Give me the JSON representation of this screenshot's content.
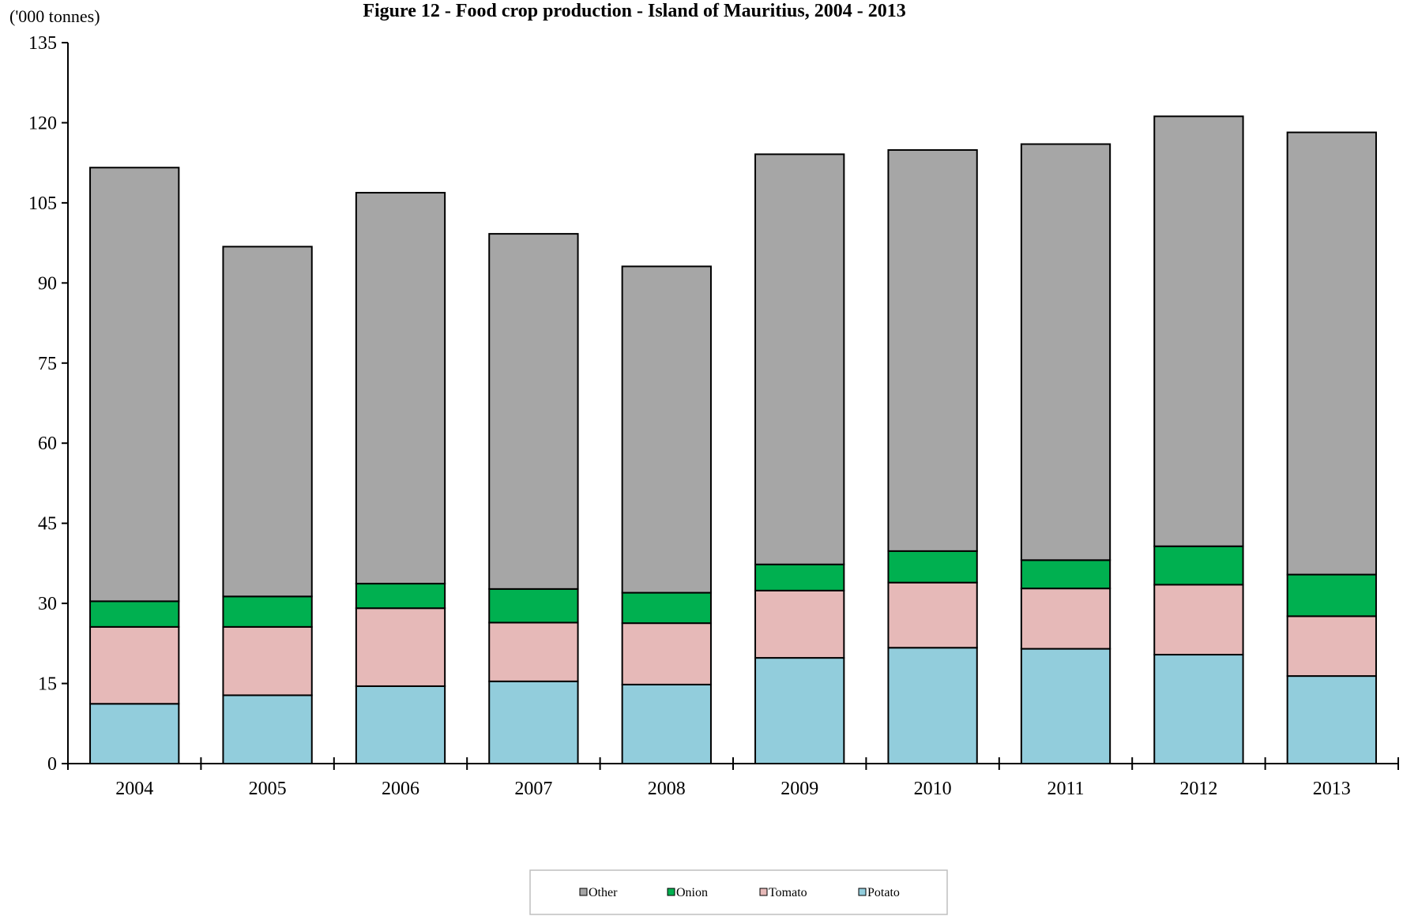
{
  "chart_data": {
    "type": "bar",
    "stacked": true,
    "title": "Figure 12 - Food crop production - Island of Mauritius, 2004 - 2013",
    "unit_label": "('000 tonnes)",
    "categories": [
      "2004",
      "2005",
      "2006",
      "2007",
      "2008",
      "2009",
      "2010",
      "2011",
      "2012",
      "2013"
    ],
    "ylim": [
      0,
      135
    ],
    "yticks": [
      0,
      15,
      30,
      45,
      60,
      75,
      90,
      105,
      120,
      135
    ],
    "grid": false,
    "legend_position": "bottom-center",
    "series": [
      {
        "name": "Potato",
        "color": "#92cddc",
        "values": [
          11.2,
          12.8,
          14.5,
          15.4,
          14.8,
          19.8,
          21.7,
          21.5,
          20.4,
          16.4
        ]
      },
      {
        "name": "Tomato",
        "color": "#e6b9b8",
        "values": [
          14.4,
          12.8,
          14.6,
          11.0,
          11.5,
          12.6,
          12.2,
          11.3,
          13.1,
          11.2
        ]
      },
      {
        "name": "Onion",
        "color": "#00b050",
        "values": [
          4.8,
          5.7,
          4.6,
          6.3,
          5.7,
          4.9,
          5.9,
          5.3,
          7.2,
          7.8
        ]
      },
      {
        "name": "Other",
        "color": "#a6a6a6",
        "values": [
          81.2,
          65.5,
          73.2,
          66.5,
          61.1,
          76.8,
          75.1,
          77.9,
          80.5,
          82.8
        ]
      }
    ],
    "legend_order": [
      "Other",
      "Onion",
      "Tomato",
      "Potato"
    ]
  }
}
